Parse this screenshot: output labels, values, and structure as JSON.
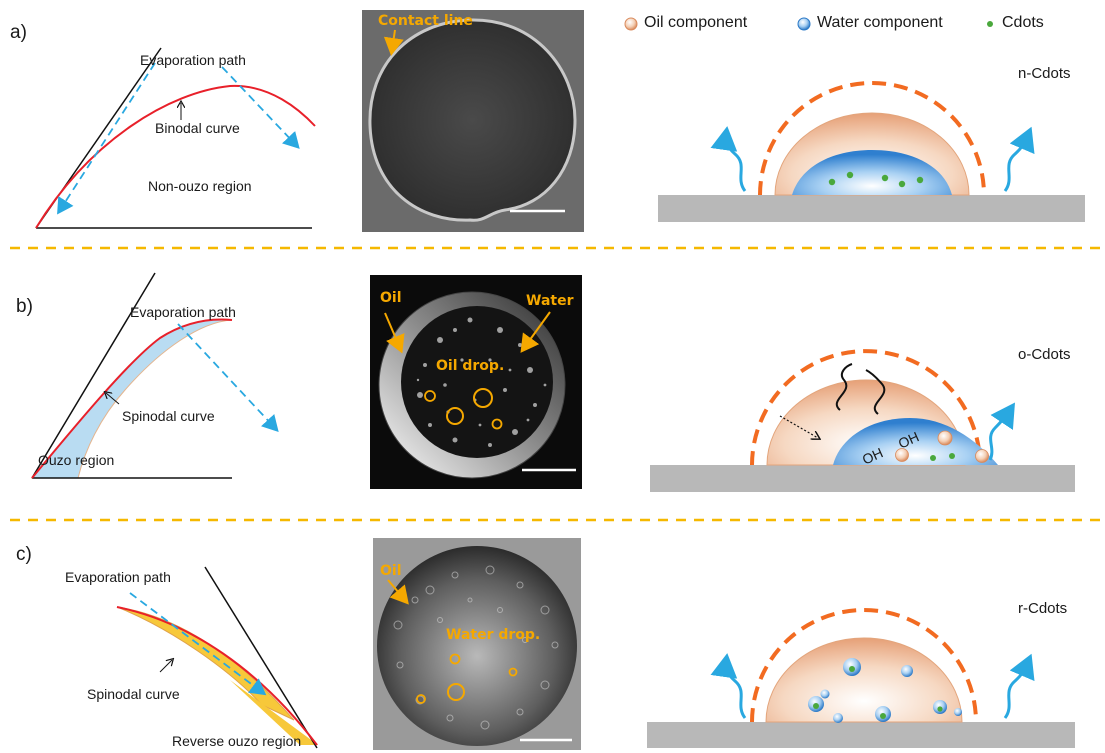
{
  "panels": {
    "a": {
      "letter": "a)",
      "evaporation_path": "Evaporation path",
      "curve_label": "Binodal curve",
      "region_label": "Non-ouzo region",
      "photo_label": "Contact line",
      "cdots_type": "n-Cdots"
    },
    "b": {
      "letter": "b)",
      "evaporation_path": "Evaporation path",
      "curve_label": "Spinodal curve",
      "region_label": "Ouzo region",
      "photo_labels": {
        "oil": "Oil",
        "water": "Water",
        "oil_drop": "Oil drop."
      },
      "cdots_type": "o-Cdots",
      "oh_labels": [
        "OH",
        "OH"
      ]
    },
    "c": {
      "letter": "c)",
      "evaporation_path": "Evaporation path",
      "curve_label": "Spinodal curve",
      "region_label": "Reverse ouzo region",
      "photo_labels": {
        "oil": "Oil",
        "water_drop": "Water drop."
      },
      "cdots_type": "r-Cdots"
    }
  },
  "legend": {
    "oil": "Oil component",
    "water": "Water component",
    "cdots": "Cdots"
  },
  "colors": {
    "red_curve": "#e8202a",
    "evap_arrow": "#29a8e0",
    "dashed_separator": "#f5b800",
    "orange_dome": "#f26b21",
    "photo_label": "#f5a800",
    "substrate": "#b8b8b8",
    "oil_fill": "#f2c8a8",
    "water_fill": "#3f8fd8",
    "cdot": "#4aa83c"
  }
}
